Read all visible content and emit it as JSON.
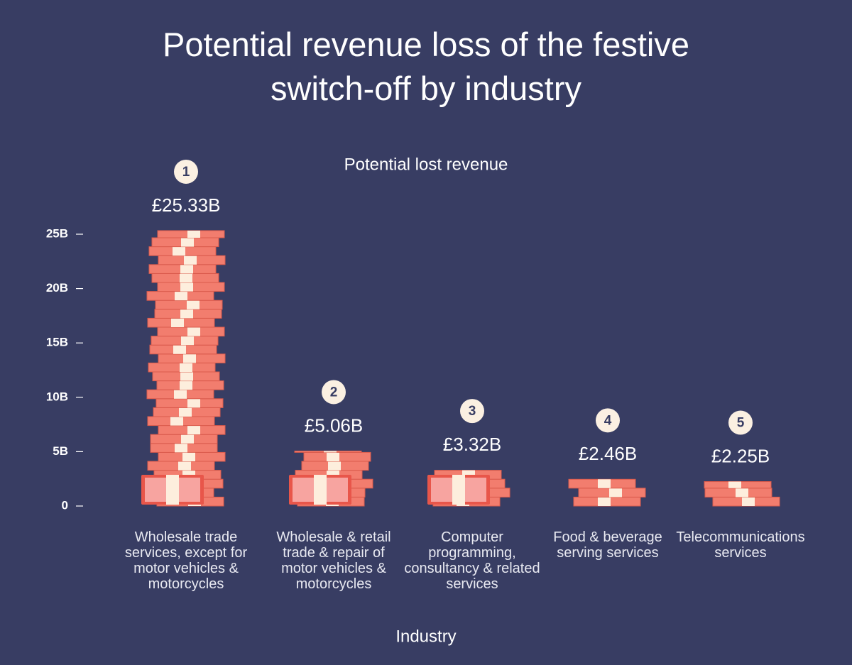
{
  "chart_data": {
    "type": "bar",
    "title": "Potential revenue loss of the festive switch-off by industry",
    "subtitle": "Potential lost revenue",
    "x_label": "Industry",
    "categories": [
      "Wholesale trade services, except for motor vehicles & motorcycles",
      "Wholesale & retail trade & repair of motor vehicles & motorcycles",
      "Computer programming, consultancy & related services",
      "Food & beverage serving services",
      "Telecommunications services"
    ],
    "ranks": [
      "1",
      "2",
      "3",
      "4",
      "5"
    ],
    "values": [
      25.33,
      5.06,
      3.32,
      2.46,
      2.25
    ],
    "value_labels": [
      "£25.33B",
      "£5.06B",
      "£3.32B",
      "£2.46B",
      "£2.25B"
    ],
    "color": "#f27d6e",
    "ylim": [
      0,
      25
    ],
    "yticks": [
      {
        "value": 0,
        "label": "0"
      },
      {
        "value": 5,
        "label": "5B"
      },
      {
        "value": 10,
        "label": "10B"
      },
      {
        "value": 15,
        "label": "15B"
      },
      {
        "value": 20,
        "label": "20B"
      },
      {
        "value": 25,
        "label": "25B"
      }
    ]
  }
}
